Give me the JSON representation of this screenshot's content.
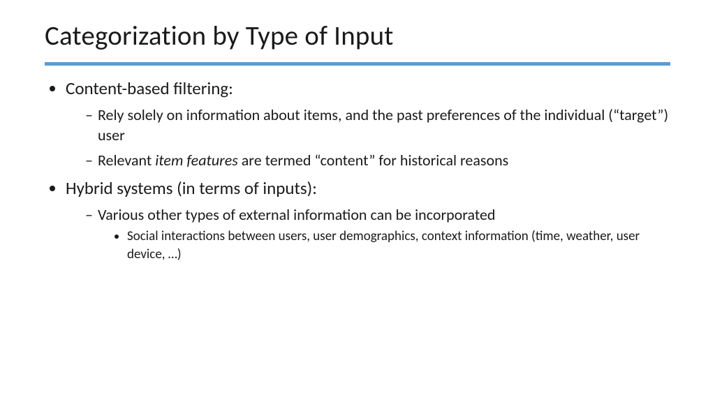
{
  "title": "Categorization by Type of Input",
  "divider_color": "#5b9bd5",
  "background_color": "#ffffff",
  "text_color": "#1a1a1a",
  "fonts": {
    "title_pt": 39,
    "l1_pt": 25,
    "l2_pt": 22,
    "l3_pt": 19
  },
  "bullets": {
    "b1": {
      "text": "Content-based filtering:",
      "sub": {
        "s1": "Rely solely on information about items, and the past preferences of the individual (“target”) user",
        "s2_pre": "Relevant ",
        "s2_ital": "item features",
        "s2_post": " are termed “content”  for historical reasons"
      }
    },
    "b2": {
      "text": "Hybrid systems (in terms of inputs):",
      "sub": {
        "s1": "Various other types of external information can be incorporated",
        "s1_sub": {
          "t1": "Social interactions between users, user demographics, context information (time, weather, user device, …)"
        }
      }
    }
  }
}
